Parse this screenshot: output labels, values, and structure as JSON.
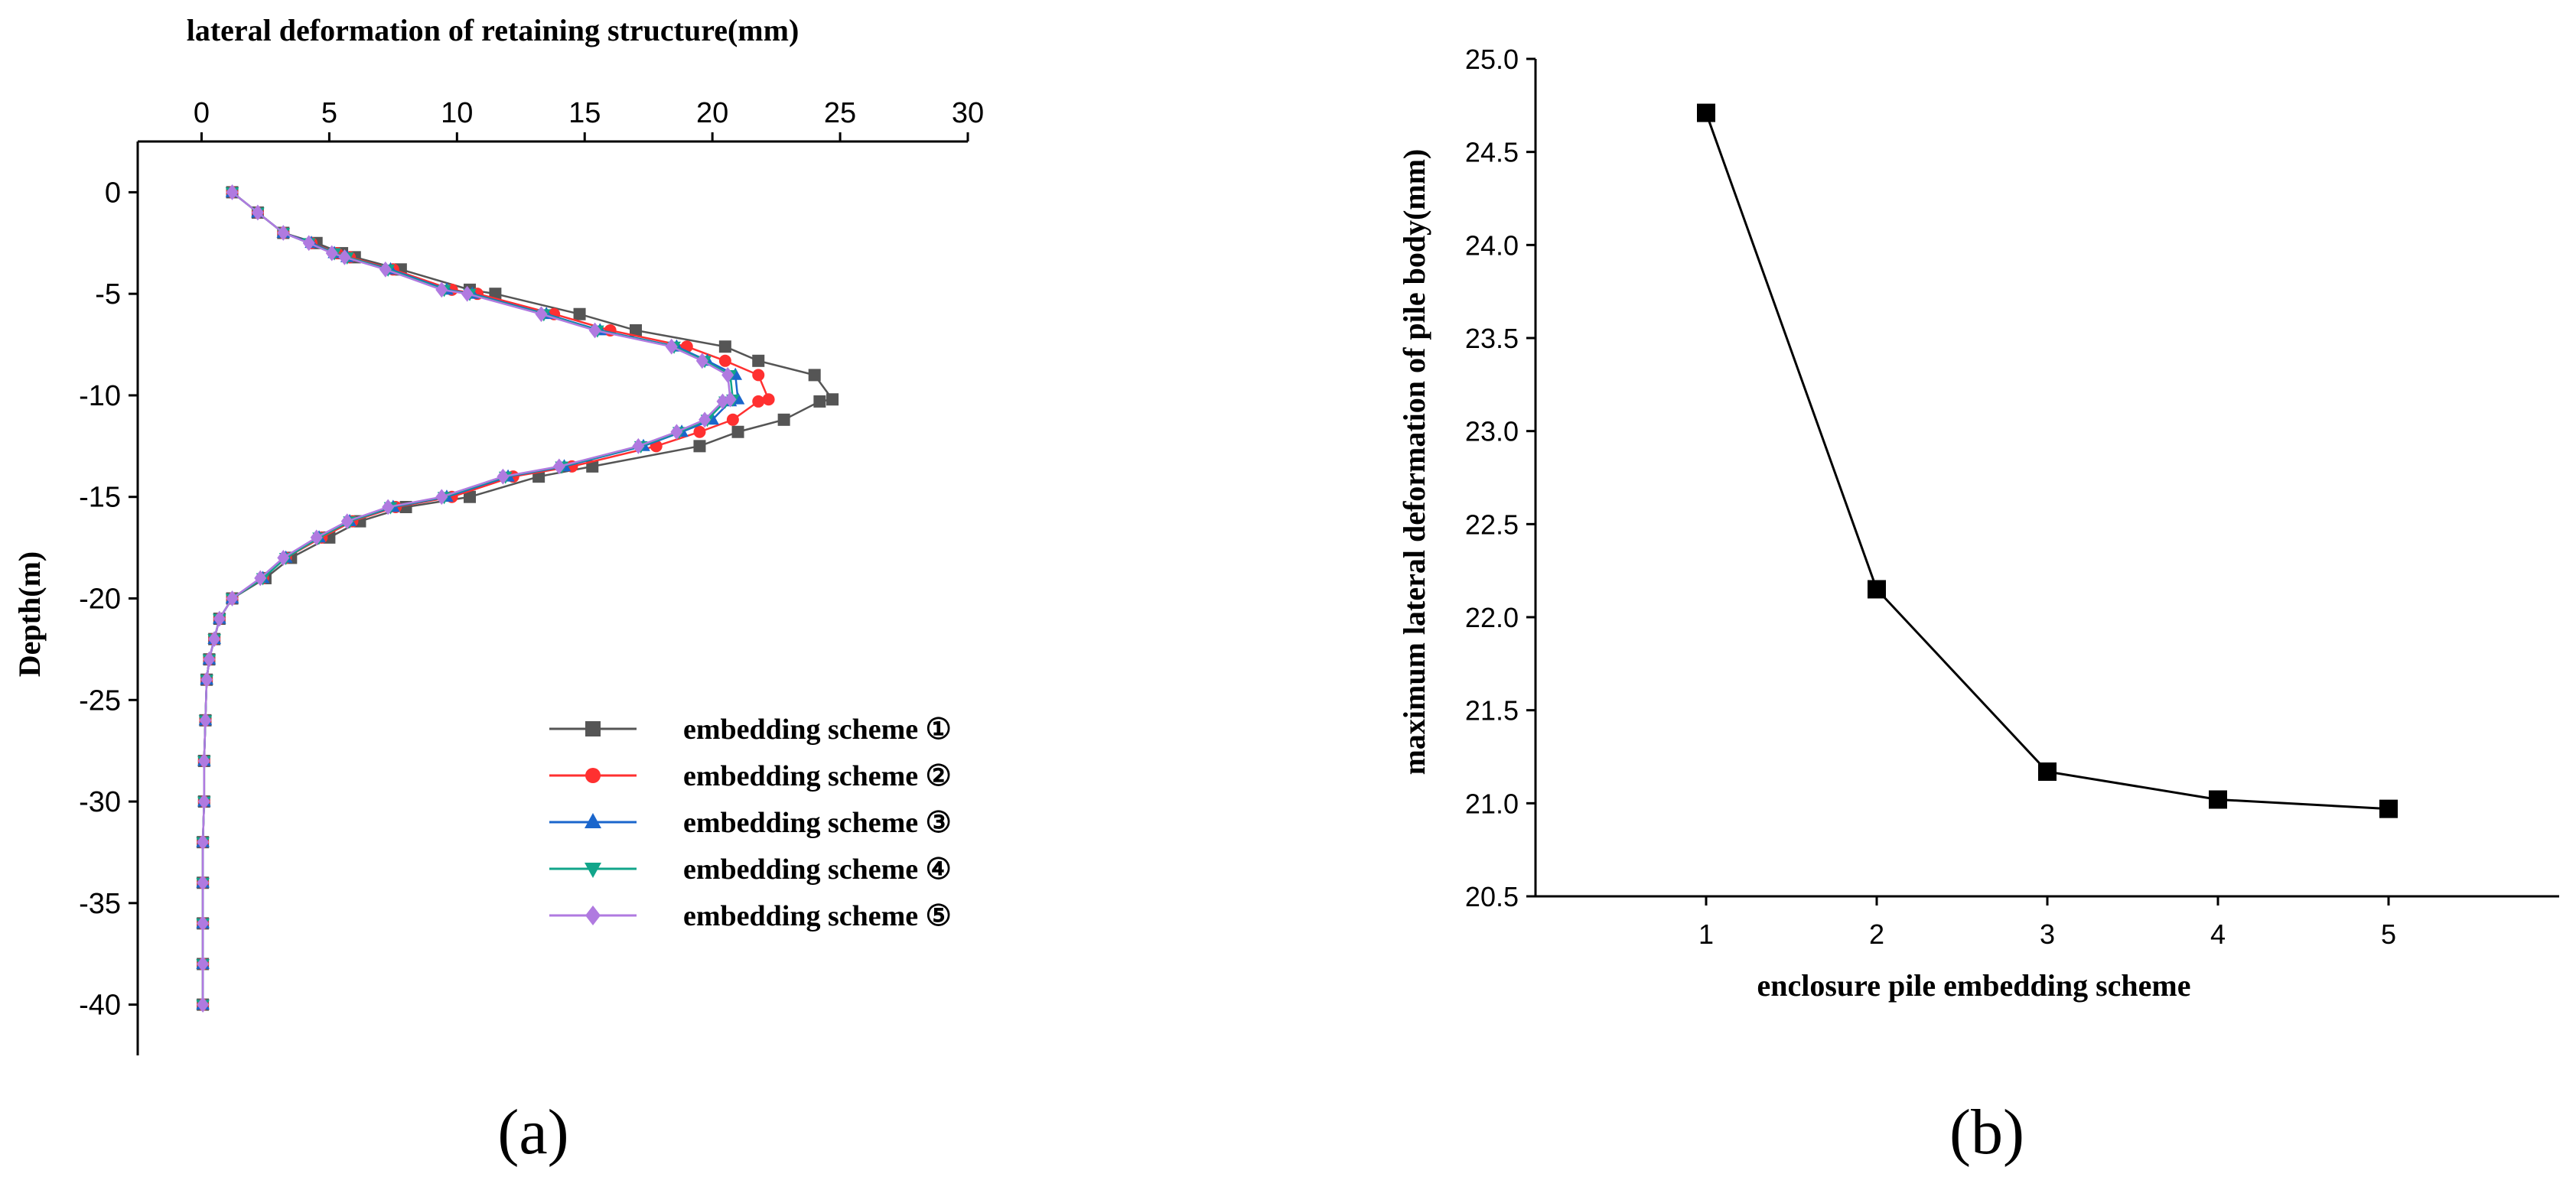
{
  "chart_data": [
    {
      "id": "a",
      "type": "line",
      "title": "lateral deformation of retaining structure(mm)",
      "xlabel": "lateral deformation of retaining structure(mm)",
      "ylabel": "Depth(m)",
      "x_axis_position": "top",
      "xlim": [
        -2.5,
        30
      ],
      "ylim": [
        -42.5,
        2.5
      ],
      "xticks": [
        0,
        5,
        10,
        15,
        20,
        25,
        30
      ],
      "yticks": [
        0,
        -5,
        -10,
        -15,
        -20,
        -25,
        -30,
        -35,
        -40
      ],
      "grid": false,
      "legend_position": "bottom-right",
      "panel_label": "(a)",
      "series": [
        {
          "name": "embedding scheme ①",
          "color": "#555555",
          "marker": "square",
          "points": [
            [
              1.2,
              0
            ],
            [
              2.2,
              -1
            ],
            [
              3.2,
              -2
            ],
            [
              4.5,
              -2.5
            ],
            [
              5.5,
              -3
            ],
            [
              6.0,
              -3.2
            ],
            [
              7.8,
              -3.8
            ],
            [
              10.5,
              -4.8
            ],
            [
              11.5,
              -5
            ],
            [
              14.8,
              -6
            ],
            [
              17.0,
              -6.8
            ],
            [
              20.5,
              -7.6
            ],
            [
              21.8,
              -8.3
            ],
            [
              24.0,
              -9.0
            ],
            [
              24.7,
              -10.2
            ],
            [
              24.2,
              -10.3
            ],
            [
              22.8,
              -11.2
            ],
            [
              21.0,
              -11.8
            ],
            [
              19.5,
              -12.5
            ],
            [
              15.3,
              -13.5
            ],
            [
              13.2,
              -14
            ],
            [
              10.5,
              -15
            ],
            [
              8.0,
              -15.5
            ],
            [
              6.2,
              -16.2
            ],
            [
              5.0,
              -17
            ],
            [
              3.5,
              -18
            ],
            [
              2.5,
              -19
            ],
            [
              1.2,
              -20
            ],
            [
              0.7,
              -21
            ],
            [
              0.5,
              -22
            ],
            [
              0.3,
              -23
            ],
            [
              0.2,
              -24
            ],
            [
              0.15,
              -26
            ],
            [
              0.1,
              -28
            ],
            [
              0.1,
              -30
            ],
            [
              0.05,
              -32
            ],
            [
              0.05,
              -34
            ],
            [
              0.05,
              -36
            ],
            [
              0.05,
              -38
            ],
            [
              0.05,
              -40
            ]
          ]
        },
        {
          "name": "embedding scheme ②",
          "color": "#ff3030",
          "marker": "circle",
          "points": [
            [
              1.2,
              0
            ],
            [
              2.2,
              -1
            ],
            [
              3.2,
              -2
            ],
            [
              4.3,
              -2.5
            ],
            [
              5.3,
              -3
            ],
            [
              5.8,
              -3.2
            ],
            [
              7.5,
              -3.8
            ],
            [
              9.8,
              -4.8
            ],
            [
              10.8,
              -5
            ],
            [
              13.8,
              -6
            ],
            [
              16.0,
              -6.8
            ],
            [
              19.0,
              -7.6
            ],
            [
              20.5,
              -8.3
            ],
            [
              21.8,
              -9.0
            ],
            [
              22.2,
              -10.2
            ],
            [
              21.8,
              -10.3
            ],
            [
              20.8,
              -11.2
            ],
            [
              19.5,
              -11.8
            ],
            [
              17.8,
              -12.5
            ],
            [
              14.5,
              -13.5
            ],
            [
              12.2,
              -14
            ],
            [
              9.8,
              -15
            ],
            [
              7.6,
              -15.5
            ],
            [
              5.9,
              -16.2
            ],
            [
              4.7,
              -17
            ],
            [
              3.3,
              -18
            ],
            [
              2.4,
              -19
            ],
            [
              1.2,
              -20
            ],
            [
              0.7,
              -21
            ],
            [
              0.5,
              -22
            ],
            [
              0.3,
              -23
            ],
            [
              0.2,
              -24
            ],
            [
              0.15,
              -26
            ],
            [
              0.1,
              -28
            ],
            [
              0.1,
              -30
            ],
            [
              0.05,
              -32
            ],
            [
              0.05,
              -34
            ],
            [
              0.05,
              -36
            ],
            [
              0.05,
              -38
            ],
            [
              0.05,
              -40
            ]
          ]
        },
        {
          "name": "embedding scheme ③",
          "color": "#1a66cc",
          "marker": "triangle",
          "points": [
            [
              1.2,
              0
            ],
            [
              2.2,
              -1
            ],
            [
              3.2,
              -2
            ],
            [
              4.3,
              -2.5
            ],
            [
              5.2,
              -3
            ],
            [
              5.7,
              -3.2
            ],
            [
              7.4,
              -3.8
            ],
            [
              9.6,
              -4.8
            ],
            [
              10.6,
              -5
            ],
            [
              13.5,
              -6
            ],
            [
              15.6,
              -6.8
            ],
            [
              18.6,
              -7.6
            ],
            [
              19.8,
              -8.3
            ],
            [
              20.9,
              -9.0
            ],
            [
              21.0,
              -10.2
            ],
            [
              20.7,
              -10.3
            ],
            [
              20.0,
              -11.2
            ],
            [
              18.8,
              -11.8
            ],
            [
              17.3,
              -12.5
            ],
            [
              14.2,
              -13.5
            ],
            [
              12.0,
              -14
            ],
            [
              9.6,
              -15
            ],
            [
              7.5,
              -15.5
            ],
            [
              5.8,
              -16.2
            ],
            [
              4.6,
              -17
            ],
            [
              3.3,
              -18
            ],
            [
              2.4,
              -19
            ],
            [
              1.2,
              -20
            ],
            [
              0.7,
              -21
            ],
            [
              0.5,
              -22
            ],
            [
              0.3,
              -23
            ],
            [
              0.2,
              -24
            ],
            [
              0.15,
              -26
            ],
            [
              0.1,
              -28
            ],
            [
              0.1,
              -30
            ],
            [
              0.05,
              -32
            ],
            [
              0.05,
              -34
            ],
            [
              0.05,
              -36
            ],
            [
              0.05,
              -38
            ],
            [
              0.05,
              -40
            ]
          ]
        },
        {
          "name": "embedding scheme ④",
          "color": "#11a58a",
          "marker": "triangle-down",
          "points": [
            [
              1.2,
              0
            ],
            [
              2.2,
              -1
            ],
            [
              3.2,
              -2
            ],
            [
              4.2,
              -2.5
            ],
            [
              5.2,
              -3
            ],
            [
              5.7,
              -3.2
            ],
            [
              7.3,
              -3.8
            ],
            [
              9.5,
              -4.8
            ],
            [
              10.5,
              -5
            ],
            [
              13.4,
              -6
            ],
            [
              15.5,
              -6.8
            ],
            [
              18.5,
              -7.6
            ],
            [
              19.7,
              -8.3
            ],
            [
              20.7,
              -9.0
            ],
            [
              20.8,
              -10.2
            ],
            [
              20.5,
              -10.3
            ],
            [
              19.8,
              -11.2
            ],
            [
              18.7,
              -11.8
            ],
            [
              17.2,
              -12.5
            ],
            [
              14.1,
              -13.5
            ],
            [
              11.9,
              -14
            ],
            [
              9.5,
              -15
            ],
            [
              7.4,
              -15.5
            ],
            [
              5.8,
              -16.2
            ],
            [
              4.6,
              -17
            ],
            [
              3.3,
              -18
            ],
            [
              2.4,
              -19
            ],
            [
              1.2,
              -20
            ],
            [
              0.7,
              -21
            ],
            [
              0.5,
              -22
            ],
            [
              0.3,
              -23
            ],
            [
              0.2,
              -24
            ],
            [
              0.15,
              -26
            ],
            [
              0.1,
              -28
            ],
            [
              0.1,
              -30
            ],
            [
              0.05,
              -32
            ],
            [
              0.05,
              -34
            ],
            [
              0.05,
              -36
            ],
            [
              0.05,
              -38
            ],
            [
              0.05,
              -40
            ]
          ]
        },
        {
          "name": "embedding scheme ⑤",
          "color": "#b07ae0",
          "marker": "diamond",
          "points": [
            [
              1.2,
              0
            ],
            [
              2.2,
              -1
            ],
            [
              3.2,
              -2
            ],
            [
              4.2,
              -2.5
            ],
            [
              5.1,
              -3
            ],
            [
              5.6,
              -3.2
            ],
            [
              7.2,
              -3.8
            ],
            [
              9.4,
              -4.8
            ],
            [
              10.4,
              -5
            ],
            [
              13.3,
              -6
            ],
            [
              15.4,
              -6.8
            ],
            [
              18.4,
              -7.6
            ],
            [
              19.6,
              -8.3
            ],
            [
              20.6,
              -9.0
            ],
            [
              20.7,
              -10.2
            ],
            [
              20.4,
              -10.3
            ],
            [
              19.7,
              -11.2
            ],
            [
              18.6,
              -11.8
            ],
            [
              17.1,
              -12.5
            ],
            [
              14.0,
              -13.5
            ],
            [
              11.8,
              -14
            ],
            [
              9.4,
              -15
            ],
            [
              7.3,
              -15.5
            ],
            [
              5.7,
              -16.2
            ],
            [
              4.5,
              -17
            ],
            [
              3.2,
              -18
            ],
            [
              2.3,
              -19
            ],
            [
              1.2,
              -20
            ],
            [
              0.7,
              -21
            ],
            [
              0.5,
              -22
            ],
            [
              0.3,
              -23
            ],
            [
              0.2,
              -24
            ],
            [
              0.15,
              -26
            ],
            [
              0.1,
              -28
            ],
            [
              0.1,
              -30
            ],
            [
              0.05,
              -32
            ],
            [
              0.05,
              -34
            ],
            [
              0.05,
              -36
            ],
            [
              0.05,
              -38
            ],
            [
              0.05,
              -40
            ]
          ]
        }
      ]
    },
    {
      "id": "b",
      "type": "line",
      "title": "",
      "xlabel": "enclosure pile embedding scheme",
      "ylabel": "maximum lateral deformation of pile body(mm)",
      "xlim": [
        0,
        6
      ],
      "ylim": [
        20.5,
        25.0
      ],
      "xticks": [
        1,
        2,
        3,
        4,
        5
      ],
      "yticks": [
        20.5,
        21.0,
        21.5,
        22.0,
        22.5,
        23.0,
        23.5,
        24.0,
        24.5,
        25.0
      ],
      "grid": false,
      "panel_label": "(b)",
      "series": [
        {
          "color": "#000000",
          "marker": "square",
          "x": [
            1,
            2,
            3,
            4,
            5
          ],
          "y": [
            24.71,
            22.15,
            21.17,
            21.02,
            20.97
          ]
        }
      ]
    }
  ]
}
